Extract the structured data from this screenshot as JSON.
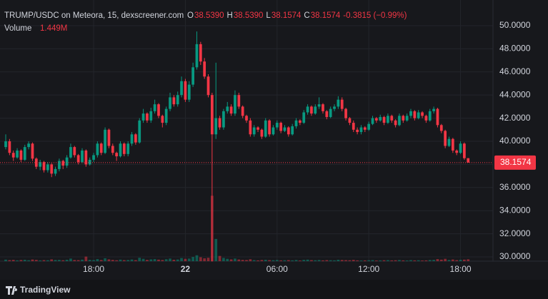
{
  "chart_data": {
    "type": "candlestick",
    "title": "TRUMP/USDC on Meteora, 15, dexscreener.com",
    "ohlc_legend": [
      {
        "key": "O",
        "value": "38.5390"
      },
      {
        "key": "H",
        "value": "38.5390"
      },
      {
        "key": "L",
        "value": "38.1574"
      },
      {
        "key": "C",
        "value": "38.1574"
      }
    ],
    "change": "-0.3815 (−0.99%)",
    "volume_label": "Volume",
    "volume_value": "1.449M",
    "last_price_label": "38.1574",
    "brand": "TradingView",
    "up_color": "#089981",
    "down_color": "#f23645",
    "grid": true,
    "ylim": [
      29.63,
      52.22
    ],
    "yticks": [
      {
        "value": 30,
        "label": "30.0000"
      },
      {
        "value": 32,
        "label": "32.0000"
      },
      {
        "value": 34,
        "label": "34.0000"
      },
      {
        "value": 36,
        "label": "36.0000"
      },
      {
        "value": 38,
        "label": "38.0000"
      },
      {
        "value": 40,
        "label": "40.0000"
      },
      {
        "value": 42,
        "label": "42.0000"
      },
      {
        "value": 44,
        "label": "44.0000"
      },
      {
        "value": 46,
        "label": "46.0000"
      },
      {
        "value": 48,
        "label": "48.0000"
      },
      {
        "value": 50,
        "label": "50.0000"
      }
    ],
    "xlim": [
      -1.5,
      127.5
    ],
    "xticks": [
      {
        "value": 23,
        "label": "18:00"
      },
      {
        "value": 47,
        "label": "22"
      },
      {
        "value": 71,
        "label": "06:00"
      },
      {
        "value": 95,
        "label": "12:00"
      },
      {
        "value": 119,
        "label": "18:00"
      }
    ],
    "vlim": [
      0,
      60
    ],
    "candles": [
      [
        39.5,
        40.6,
        39.3,
        40.0
      ],
      [
        40.0,
        40.2,
        38.8,
        39.0
      ],
      [
        39.0,
        39.2,
        38.3,
        38.6
      ],
      [
        38.6,
        39.4,
        38.5,
        39.2
      ],
      [
        39.2,
        39.3,
        38.2,
        38.4
      ],
      [
        38.4,
        39.7,
        38.3,
        39.5
      ],
      [
        39.5,
        40.0,
        39.3,
        39.8
      ],
      [
        39.8,
        39.9,
        38.3,
        38.5
      ],
      [
        38.5,
        38.6,
        37.6,
        37.8
      ],
      [
        37.8,
        38.4,
        37.5,
        38.2
      ],
      [
        38.2,
        38.3,
        37.3,
        37.5
      ],
      [
        37.5,
        38.2,
        37.3,
        38.0
      ],
      [
        38.0,
        38.1,
        36.9,
        37.2
      ],
      [
        37.2,
        37.8,
        37.0,
        37.6
      ],
      [
        37.6,
        38.5,
        37.4,
        38.3
      ],
      [
        38.3,
        38.4,
        37.6,
        37.9
      ],
      [
        37.9,
        38.8,
        37.7,
        38.6
      ],
      [
        38.6,
        39.8,
        38.5,
        39.5
      ],
      [
        39.5,
        39.6,
        38.6,
        38.8
      ],
      [
        38.8,
        38.9,
        38.0,
        38.2
      ],
      [
        38.2,
        39.4,
        38.1,
        39.2
      ],
      [
        39.2,
        39.3,
        37.8,
        38.0
      ],
      [
        38.0,
        38.6,
        37.9,
        38.4
      ],
      [
        38.4,
        39.0,
        38.2,
        38.8
      ],
      [
        38.8,
        40.0,
        38.6,
        39.8
      ],
      [
        39.8,
        39.9,
        38.8,
        39.0
      ],
      [
        39.0,
        41.2,
        38.9,
        41.0
      ],
      [
        41.0,
        41.1,
        39.4,
        39.6
      ],
      [
        39.6,
        39.8,
        38.8,
        39.0
      ],
      [
        39.0,
        39.1,
        38.3,
        38.7
      ],
      [
        38.7,
        40.0,
        38.6,
        39.8
      ],
      [
        39.8,
        39.9,
        38.7,
        38.9
      ],
      [
        38.9,
        40.0,
        38.7,
        39.8
      ],
      [
        39.8,
        40.8,
        39.6,
        40.6
      ],
      [
        40.6,
        40.7,
        39.7,
        39.9
      ],
      [
        39.9,
        42.0,
        39.8,
        41.8
      ],
      [
        41.8,
        42.8,
        41.6,
        42.4
      ],
      [
        42.4,
        42.5,
        41.6,
        41.8
      ],
      [
        41.8,
        42.9,
        41.6,
        42.6
      ],
      [
        42.6,
        43.6,
        42.4,
        43.2
      ],
      [
        43.2,
        43.3,
        42.0,
        42.2
      ],
      [
        42.2,
        42.3,
        41.2,
        41.6
      ],
      [
        41.6,
        43.0,
        41.4,
        42.8
      ],
      [
        42.8,
        44.2,
        42.6,
        43.8
      ],
      [
        43.8,
        44.0,
        43.0,
        43.2
      ],
      [
        43.2,
        44.3,
        43.0,
        44.0
      ],
      [
        44.0,
        45.6,
        43.8,
        45.2
      ],
      [
        45.2,
        45.4,
        43.4,
        43.6
      ],
      [
        43.6,
        45.2,
        43.4,
        44.9
      ],
      [
        44.9,
        46.8,
        44.7,
        46.4
      ],
      [
        46.4,
        49.5,
        46.2,
        48.4
      ],
      [
        48.4,
        48.6,
        46.6,
        46.9
      ],
      [
        46.9,
        47.2,
        45.4,
        45.6
      ],
      [
        45.6,
        45.8,
        43.8,
        44.0
      ],
      [
        44.0,
        44.2,
        29.6,
        40.6
      ],
      [
        40.6,
        46.8,
        40.2,
        42.0
      ],
      [
        42.0,
        42.2,
        41.0,
        41.2
      ],
      [
        41.2,
        42.8,
        41.0,
        42.6
      ],
      [
        42.6,
        43.4,
        42.4,
        43.0
      ],
      [
        43.0,
        43.2,
        42.2,
        42.4
      ],
      [
        42.4,
        44.4,
        42.2,
        44.0
      ],
      [
        44.0,
        44.2,
        42.8,
        43.0
      ],
      [
        43.0,
        43.1,
        42.0,
        42.2
      ],
      [
        42.2,
        42.3,
        41.6,
        41.8
      ],
      [
        41.8,
        42.0,
        40.4,
        40.6
      ],
      [
        40.6,
        41.4,
        40.4,
        41.2
      ],
      [
        41.2,
        41.3,
        40.8,
        41.0
      ],
      [
        41.0,
        41.1,
        40.2,
        40.4
      ],
      [
        40.4,
        42.0,
        40.3,
        41.8
      ],
      [
        41.8,
        41.9,
        40.4,
        40.6
      ],
      [
        40.6,
        41.4,
        40.5,
        41.2
      ],
      [
        41.2,
        41.8,
        41.0,
        41.6
      ],
      [
        41.6,
        41.7,
        40.7,
        40.9
      ],
      [
        40.9,
        41.4,
        40.8,
        41.2
      ],
      [
        41.2,
        41.3,
        40.4,
        40.6
      ],
      [
        40.6,
        41.5,
        40.5,
        41.3
      ],
      [
        41.3,
        42.0,
        41.1,
        41.8
      ],
      [
        41.8,
        41.9,
        41.4,
        41.6
      ],
      [
        41.6,
        42.7,
        41.5,
        42.5
      ],
      [
        42.5,
        43.2,
        42.3,
        43.0
      ],
      [
        43.0,
        43.1,
        42.2,
        42.4
      ],
      [
        42.4,
        43.2,
        42.3,
        43.0
      ],
      [
        43.0,
        43.8,
        42.8,
        43.2
      ],
      [
        43.2,
        43.3,
        42.4,
        42.6
      ],
      [
        42.6,
        42.7,
        41.9,
        42.1
      ],
      [
        42.1,
        43.0,
        42.0,
        42.8
      ],
      [
        42.8,
        43.2,
        42.6,
        43.0
      ],
      [
        43.0,
        43.9,
        42.8,
        43.6
      ],
      [
        43.6,
        43.8,
        42.6,
        42.8
      ],
      [
        42.8,
        42.9,
        41.8,
        42.0
      ],
      [
        42.0,
        42.1,
        41.4,
        41.6
      ],
      [
        41.6,
        41.8,
        40.8,
        41.0
      ],
      [
        41.0,
        41.2,
        40.6,
        40.8
      ],
      [
        40.8,
        41.4,
        40.6,
        41.2
      ],
      [
        41.2,
        41.3,
        40.8,
        41.0
      ],
      [
        41.0,
        41.7,
        40.9,
        41.5
      ],
      [
        41.5,
        42.2,
        41.4,
        42.0
      ],
      [
        42.0,
        42.1,
        41.6,
        41.8
      ],
      [
        41.8,
        42.3,
        41.7,
        42.1
      ],
      [
        42.1,
        42.2,
        41.4,
        41.6
      ],
      [
        41.6,
        42.4,
        41.5,
        42.2
      ],
      [
        42.2,
        42.3,
        41.6,
        41.8
      ],
      [
        41.8,
        41.9,
        41.2,
        41.4
      ],
      [
        41.4,
        42.4,
        41.3,
        42.2
      ],
      [
        42.2,
        42.3,
        41.6,
        41.8
      ],
      [
        41.8,
        42.4,
        41.7,
        42.2
      ],
      [
        42.2,
        42.8,
        42.0,
        42.6
      ],
      [
        42.6,
        42.7,
        41.8,
        42.0
      ],
      [
        42.0,
        42.7,
        41.9,
        42.5
      ],
      [
        42.5,
        42.6,
        42.0,
        42.2
      ],
      [
        42.2,
        42.3,
        41.6,
        41.8
      ],
      [
        41.8,
        42.8,
        41.7,
        42.6
      ],
      [
        42.6,
        43.0,
        42.4,
        42.8
      ],
      [
        42.8,
        42.9,
        41.2,
        41.4
      ],
      [
        41.4,
        41.5,
        40.7,
        40.9
      ],
      [
        40.9,
        41.0,
        39.4,
        39.6
      ],
      [
        39.6,
        40.4,
        39.5,
        40.2
      ],
      [
        40.2,
        40.3,
        39.0,
        39.2
      ],
      [
        39.2,
        39.3,
        38.8,
        39.0
      ],
      [
        39.0,
        40.0,
        38.9,
        39.8
      ],
      [
        39.8,
        39.9,
        38.4,
        38.539
      ],
      [
        38.539,
        38.539,
        38.1574,
        38.1574
      ]
    ],
    "volumes": [
      1.2,
      0.8,
      1.0,
      0.6,
      0.9,
      1.1,
      0.7,
      1.3,
      1.0,
      0.6,
      0.8,
      0.7,
      1.4,
      0.9,
      1.0,
      0.7,
      1.1,
      2.0,
      0.9,
      0.8,
      1.2,
      3.5,
      1.0,
      0.8,
      1.6,
      0.9,
      2.2,
      1.4,
      1.0,
      0.7,
      1.2,
      0.8,
      0.9,
      1.3,
      0.8,
      2.6,
      1.8,
      1.0,
      1.4,
      1.6,
      1.2,
      0.9,
      1.5,
      2.0,
      1.1,
      1.3,
      2.4,
      1.8,
      2.0,
      3.2,
      4.5,
      3.0,
      2.2,
      2.6,
      50,
      17,
      4.0,
      2.5,
      1.8,
      1.4,
      2.0,
      1.3,
      1.0,
      0.9,
      1.5,
      0.8,
      0.6,
      0.9,
      1.1,
      0.8,
      0.7,
      0.9,
      0.6,
      0.7,
      0.8,
      0.6,
      0.9,
      0.5,
      1.0,
      1.2,
      0.8,
      0.7,
      0.9,
      0.6,
      0.8,
      0.7,
      0.6,
      1.1,
      0.9,
      0.8,
      0.7,
      1.0,
      0.6,
      0.5,
      0.6,
      0.7,
      0.8,
      0.5,
      0.6,
      0.7,
      0.8,
      0.6,
      0.7,
      0.9,
      0.6,
      0.5,
      0.8,
      0.6,
      0.7,
      0.5,
      0.6,
      0.9,
      1.0,
      1.6,
      1.2,
      1.8,
      0.9,
      1.3,
      0.8,
      1.1,
      1.2,
      1.449
    ]
  }
}
